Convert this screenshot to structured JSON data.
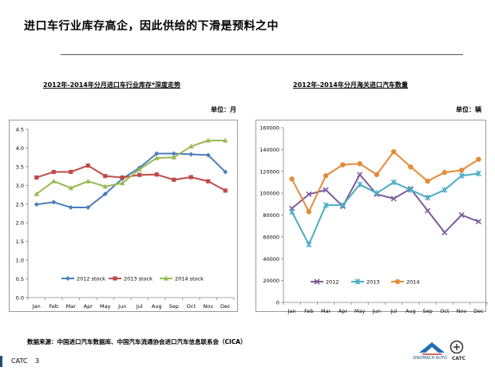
{
  "slide": {
    "title": "进口车行业库存高企，因此供给的下滑是预料之中",
    "source": "数据来源：中国进口汽车数据库、中国汽车流通协会进口汽车信息联系会（CICA）",
    "footer_brand": "CATC",
    "page_number": "3",
    "logo_left_text": "SINOMACH AUTO",
    "logo_right_text": "CATC"
  },
  "colors": {
    "s2012_left": "#4a7ebb",
    "s2013_left": "#be4b48",
    "s2014_left": "#98b954",
    "s2012_right": "#7d5a9c",
    "s2013_right": "#4bacc6",
    "s2014_right": "#e58b3a"
  },
  "chart_data": [
    {
      "type": "line",
      "title": "2012年-2014年分月进口车行业库存*深度走势",
      "unit": "单位：月",
      "categories": [
        "Jan",
        "Feb",
        "Mar",
        "Apr",
        "May",
        "Jun",
        "Jul",
        "Aug",
        "Sep",
        "Oct",
        "Nov",
        "Dec"
      ],
      "ylim": [
        0,
        4.5
      ],
      "yticks": [
        "0.0",
        "0.5",
        "1.0",
        "1.5",
        "2.0",
        "2.5",
        "3.0",
        "3.5",
        "4.0",
        "4.5"
      ],
      "grid": false,
      "legend_position": "bottom",
      "series": [
        {
          "name": "2012 stock",
          "marker": "diamond",
          "values": [
            2.49,
            2.55,
            2.41,
            2.41,
            2.77,
            3.18,
            3.47,
            3.85,
            3.85,
            3.83,
            3.81,
            3.36
          ]
        },
        {
          "name": "2013 stock",
          "marker": "square",
          "values": [
            3.21,
            3.36,
            3.36,
            3.53,
            3.25,
            3.21,
            3.28,
            3.29,
            3.15,
            3.22,
            3.11,
            2.86
          ]
        },
        {
          "name": "2014 stock",
          "marker": "triangle",
          "values": [
            2.77,
            3.11,
            2.93,
            3.11,
            2.97,
            3.06,
            3.43,
            3.73,
            3.75,
            4.04,
            4.2,
            4.2
          ]
        }
      ]
    },
    {
      "type": "line",
      "title": "2012年-2014年分月海关进口汽车数量",
      "unit": "单位：辆",
      "categories": [
        "Jan",
        "Feb",
        "Mar",
        "Apr",
        "May",
        "Jun",
        "Jul",
        "Aug",
        "Sep",
        "Oct",
        "Nov",
        "Dec"
      ],
      "ylim": [
        0,
        160000
      ],
      "yticks": [
        "0",
        "20000",
        "40000",
        "60000",
        "80000",
        "100000",
        "120000",
        "140000",
        "160000"
      ],
      "grid": false,
      "legend_position": "bottom",
      "series": [
        {
          "name": "2012",
          "marker": "x",
          "values": [
            86000,
            99000,
            103000,
            88000,
            117000,
            99000,
            95000,
            104000,
            84000,
            64000,
            80000,
            74000
          ]
        },
        {
          "name": "2013",
          "marker": "asterisk",
          "values": [
            83000,
            53000,
            89000,
            89000,
            108000,
            100000,
            110000,
            103000,
            96000,
            103000,
            116000,
            118000
          ]
        },
        {
          "name": "2014",
          "marker": "circle",
          "values": [
            113000,
            83000,
            116000,
            126000,
            127000,
            117000,
            138000,
            124000,
            111000,
            119000,
            121000,
            131000
          ]
        }
      ]
    }
  ]
}
